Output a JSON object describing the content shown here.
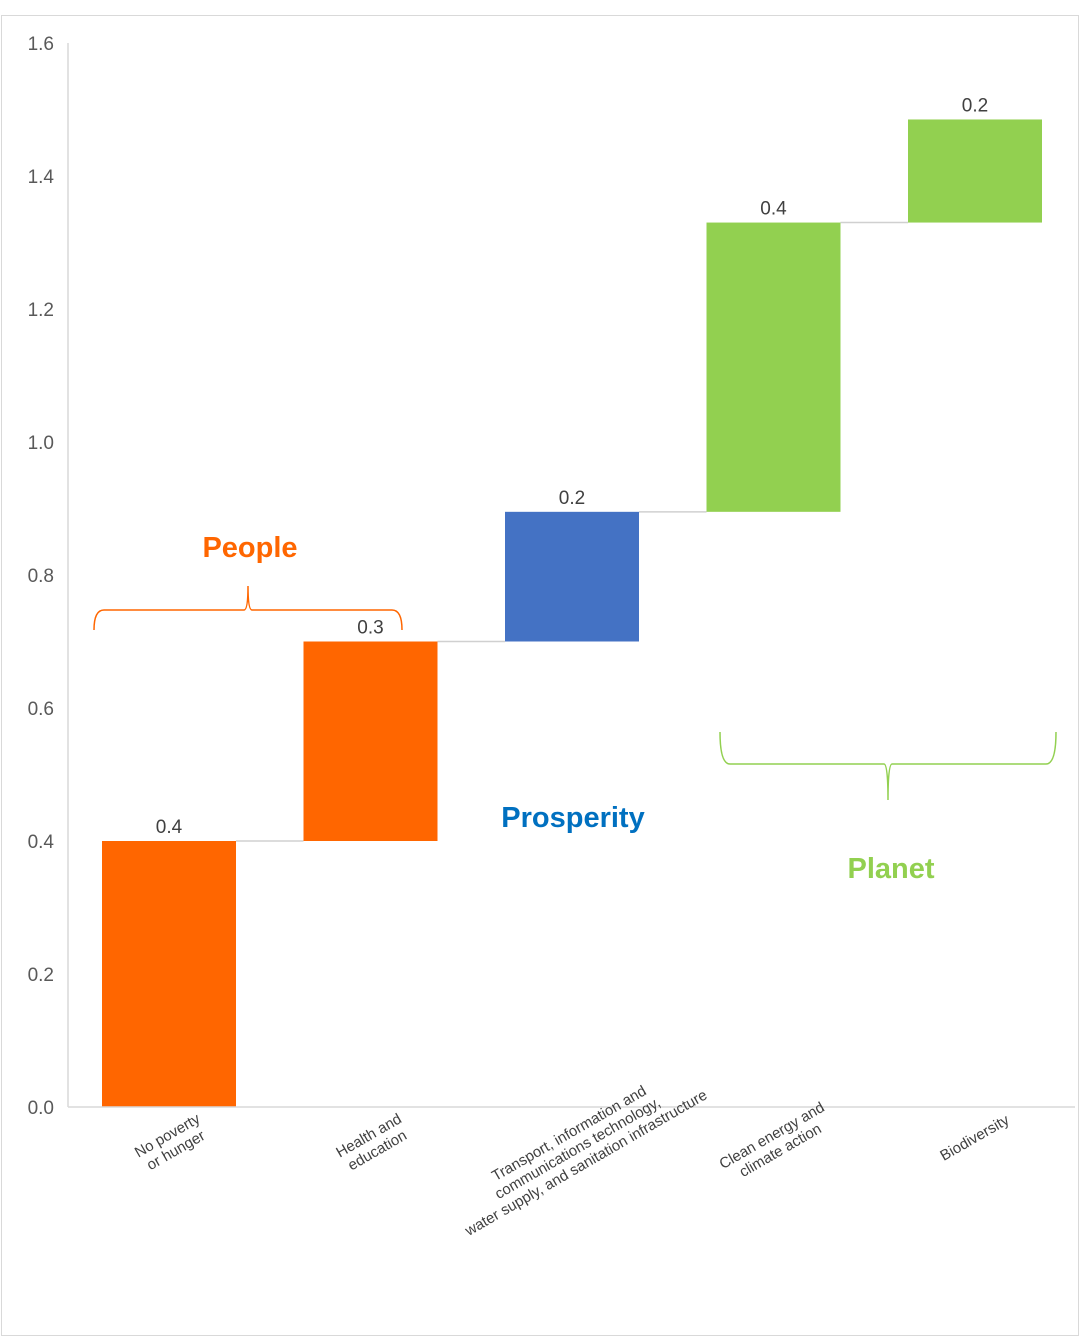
{
  "chart_data": {
    "type": "waterfall",
    "ylim": [
      0,
      1.6
    ],
    "yticks": [
      "0.0",
      "0.2",
      "0.4",
      "0.6",
      "0.8",
      "1.0",
      "1.2",
      "1.4",
      "1.6"
    ],
    "categories": [
      [
        "No poverty",
        "or hunger"
      ],
      [
        "Health and",
        "education"
      ],
      [
        "Transport, information and",
        "communications technology,",
        "water supply, and sanitation infrastructure"
      ],
      [
        "Clean energy and",
        "climate action"
      ],
      [
        "Biodiversity"
      ]
    ],
    "values": [
      0.4,
      0.3,
      0.2,
      0.4,
      0.2
    ],
    "value_labels": [
      "0.4",
      "0.3",
      "0.2",
      "0.4",
      "0.2"
    ],
    "bar_bottoms": [
      0.0,
      0.4,
      0.7,
      0.895,
      1.33
    ],
    "bar_tops": [
      0.4,
      0.7,
      0.895,
      1.33,
      1.485
    ],
    "bar_colors": [
      "#ff6600",
      "#ff6600",
      "#4472c4",
      "#92d050",
      "#92d050"
    ],
    "groups": [
      {
        "label": "People",
        "color": "#ff6600",
        "categories": [
          0,
          1
        ]
      },
      {
        "label": "Prosperity",
        "color": "#0070c0",
        "categories": [
          2
        ]
      },
      {
        "label": "Planet",
        "color": "#92d050",
        "categories": [
          3,
          4
        ]
      }
    ],
    "grid": false,
    "legend": "none"
  }
}
